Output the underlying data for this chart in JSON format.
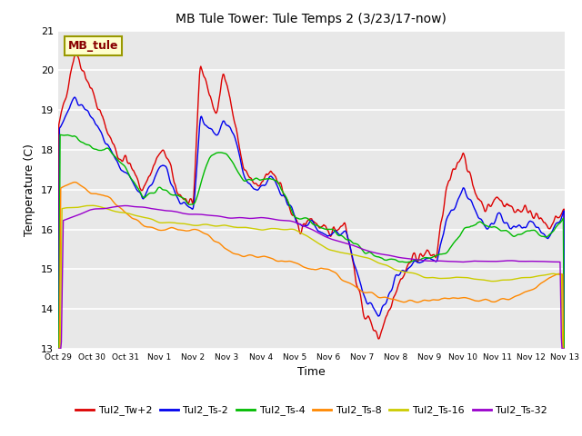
{
  "title": "MB Tule Tower: Tule Temps 2 (3/23/17-now)",
  "xlabel": "Time",
  "ylabel": "Temperature (C)",
  "ylim": [
    13.0,
    21.0
  ],
  "yticks": [
    13.0,
    14.0,
    15.0,
    16.0,
    17.0,
    18.0,
    19.0,
    20.0,
    21.0
  ],
  "xtick_labels": [
    "Oct 29",
    "Oct 30",
    "Oct 31",
    "Nov 1",
    "Nov 2",
    "Nov 3",
    "Nov 4",
    "Nov 5",
    "Nov 6",
    "Nov 7",
    "Nov 8",
    "Nov 9",
    "Nov 10",
    "Nov 11",
    "Nov 12",
    "Nov 13"
  ],
  "bg_color": "#e8e8e8",
  "legend_label": "MB_tule",
  "legend_bg": "#ffffcc",
  "legend_border": "#999900",
  "series_colors": [
    "#dd0000",
    "#0000ee",
    "#00bb00",
    "#ff8800",
    "#cccc00",
    "#9900cc"
  ],
  "series_labels": [
    "Tul2_Tw+2",
    "Tul2_Ts-2",
    "Tul2_Ts-4",
    "Tul2_Ts-8",
    "Tul2_Ts-16",
    "Tul2_Ts-32"
  ]
}
